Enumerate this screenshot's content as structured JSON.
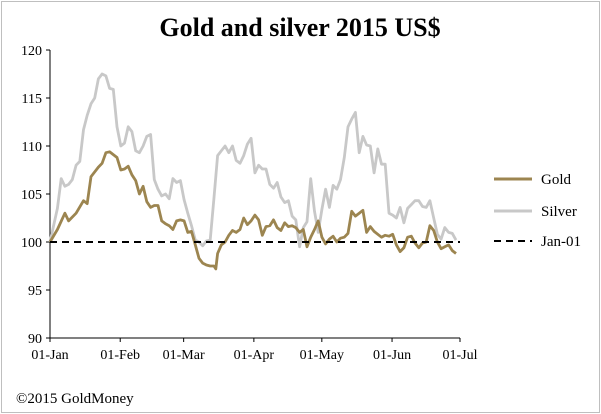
{
  "chart_data": {
    "type": "line",
    "title": "Gold and silver 2015 US$",
    "xlabel": "",
    "ylabel": "",
    "ylim": [
      90,
      120
    ],
    "yticks": [
      90,
      95,
      100,
      105,
      110,
      115,
      120
    ],
    "x_range_days": [
      0,
      181
    ],
    "xticks": [
      {
        "label": "01-Jan",
        "day": 0
      },
      {
        "label": "01-Feb",
        "day": 31
      },
      {
        "label": "01-Mar",
        "day": 59
      },
      {
        "label": "01-Apr",
        "day": 90
      },
      {
        "label": "01-May",
        "day": 120
      },
      {
        "label": "01-Jun",
        "day": 151
      },
      {
        "label": "01-Jul",
        "day": 181
      }
    ],
    "legend_position": "right",
    "series": [
      {
        "name": "Gold",
        "color": "#9c8550",
        "style": "solid",
        "points": [
          [
            0,
            100
          ],
          [
            2,
            101.3
          ],
          [
            4,
            103
          ],
          [
            5,
            102.2
          ],
          [
            7,
            103
          ],
          [
            9,
            104.3
          ],
          [
            10,
            104
          ],
          [
            11,
            106.8
          ],
          [
            13,
            107.8
          ],
          [
            14,
            108.2
          ],
          [
            15,
            109.3
          ],
          [
            16,
            109.4
          ],
          [
            17,
            109.1
          ],
          [
            18,
            108.8
          ],
          [
            19,
            107.5
          ],
          [
            20,
            107.6
          ],
          [
            21,
            107.9
          ],
          [
            22,
            107
          ],
          [
            23,
            106.4
          ],
          [
            24,
            105
          ],
          [
            25,
            105.8
          ],
          [
            26,
            104.2
          ],
          [
            27,
            103.6
          ],
          [
            28,
            103.8
          ],
          [
            29,
            103.8
          ],
          [
            30,
            102.2
          ],
          [
            31,
            101.9
          ],
          [
            32,
            101.7
          ],
          [
            33,
            101.3
          ],
          [
            34,
            102.2
          ],
          [
            35,
            102.3
          ],
          [
            36,
            102.2
          ],
          [
            37,
            101
          ],
          [
            38,
            101.1
          ],
          [
            39,
            99.7
          ],
          [
            40,
            98.3
          ],
          [
            41,
            97.8
          ],
          [
            42,
            97.6
          ],
          [
            43,
            97.5
          ],
          [
            44,
            97.5
          ],
          [
            44.5,
            97.2
          ],
          [
            45,
            98.8
          ],
          [
            46,
            99.7
          ],
          [
            47,
            100
          ],
          [
            48,
            100.7
          ],
          [
            49,
            101.2
          ],
          [
            50,
            101
          ],
          [
            51,
            101.3
          ],
          [
            52,
            102.5
          ],
          [
            53,
            101.8
          ],
          [
            54,
            102.2
          ],
          [
            55,
            102.8
          ],
          [
            56,
            102.3
          ],
          [
            57,
            100.7
          ],
          [
            58,
            101.6
          ],
          [
            59,
            101.7
          ],
          [
            60,
            102.3
          ],
          [
            61,
            101.5
          ],
          [
            62,
            101.2
          ],
          [
            63,
            102
          ],
          [
            64,
            101.6
          ],
          [
            65,
            101.7
          ],
          [
            66,
            101.5
          ],
          [
            67,
            101
          ],
          [
            68,
            101.3
          ],
          [
            69,
            99.5
          ],
          [
            70,
            100.5
          ],
          [
            71,
            101.3
          ],
          [
            72,
            102.2
          ],
          [
            73,
            100.5
          ],
          [
            74,
            99.8
          ],
          [
            75,
            100.3
          ],
          [
            76,
            100.6
          ],
          [
            77,
            100
          ],
          [
            78,
            100.4
          ],
          [
            79,
            100.5
          ],
          [
            80,
            100.9
          ],
          [
            81,
            103.2
          ],
          [
            82,
            102.7
          ],
          [
            83,
            103
          ],
          [
            84,
            103.3
          ],
          [
            85,
            101
          ],
          [
            86,
            101.6
          ],
          [
            87,
            101.1
          ],
          [
            88,
            100.8
          ],
          [
            89,
            100.5
          ],
          [
            90,
            100.7
          ],
          [
            91,
            100.6
          ],
          [
            92,
            100.8
          ],
          [
            93,
            99.7
          ],
          [
            94,
            99
          ],
          [
            95,
            99.4
          ],
          [
            96,
            100.5
          ],
          [
            97,
            100.6
          ],
          [
            98,
            99.9
          ],
          [
            99,
            99.4
          ],
          [
            100,
            99.9
          ],
          [
            101,
            100
          ],
          [
            102,
            101.7
          ],
          [
            103,
            101.2
          ],
          [
            104,
            100
          ],
          [
            105,
            99.3
          ],
          [
            106,
            99.5
          ],
          [
            107,
            99.7
          ],
          [
            108,
            99.1
          ],
          [
            109,
            98.8
          ]
        ],
        "x_scale_note": "x values are approximate day-of-year positions scaled so 109 ≈ 01-Jul"
      },
      {
        "name": "Silver",
        "color": "#c8c8c8",
        "style": "solid",
        "points": [
          [
            0,
            100
          ],
          [
            2,
            103.5
          ],
          [
            3,
            106.6
          ],
          [
            4,
            105.8
          ],
          [
            5,
            106
          ],
          [
            6,
            106.5
          ],
          [
            7,
            108
          ],
          [
            8,
            108.4
          ],
          [
            9,
            111.7
          ],
          [
            10,
            113.2
          ],
          [
            11,
            114.4
          ],
          [
            12,
            115
          ],
          [
            13,
            117
          ],
          [
            14,
            117.5
          ],
          [
            15,
            117.3
          ],
          [
            16,
            116
          ],
          [
            17,
            115.9
          ],
          [
            18,
            112
          ],
          [
            19,
            110
          ],
          [
            20,
            110.3
          ],
          [
            21,
            112
          ],
          [
            22,
            111.5
          ],
          [
            23,
            109.5
          ],
          [
            24,
            109.3
          ],
          [
            25,
            110
          ],
          [
            26,
            111
          ],
          [
            27,
            111.2
          ],
          [
            28,
            106.5
          ],
          [
            29,
            105.5
          ],
          [
            30,
            104.8
          ],
          [
            31,
            105
          ],
          [
            32,
            104.5
          ],
          [
            33,
            106.6
          ],
          [
            34,
            106.2
          ],
          [
            35,
            106.4
          ],
          [
            36,
            104.4
          ],
          [
            37,
            103
          ],
          [
            38,
            101.7
          ],
          [
            39,
            100.2
          ],
          [
            40,
            100
          ],
          [
            41,
            99.6
          ],
          [
            42,
            100.1
          ],
          [
            43,
            100.2
          ],
          [
            44,
            104.5
          ],
          [
            45,
            109
          ],
          [
            46,
            109.5
          ],
          [
            47,
            110
          ],
          [
            48,
            109.3
          ],
          [
            49,
            110
          ],
          [
            50,
            108.5
          ],
          [
            51,
            108.2
          ],
          [
            52,
            109
          ],
          [
            53,
            110.2
          ],
          [
            54,
            110.8
          ],
          [
            55,
            107.2
          ],
          [
            56,
            108
          ],
          [
            57,
            107.6
          ],
          [
            58,
            107.6
          ],
          [
            59,
            106
          ],
          [
            60,
            105.6
          ],
          [
            61,
            106.2
          ],
          [
            62,
            104.7
          ],
          [
            63,
            104.1
          ],
          [
            64,
            104.3
          ],
          [
            65,
            102.7
          ],
          [
            66,
            102.3
          ],
          [
            67,
            99.5
          ],
          [
            68,
            101.5
          ],
          [
            69,
            102.1
          ],
          [
            70,
            106.6
          ],
          [
            71,
            103.2
          ],
          [
            72,
            101
          ],
          [
            73,
            103.4
          ],
          [
            74,
            105.5
          ],
          [
            75,
            103.6
          ],
          [
            76,
            105.9
          ],
          [
            77,
            105.5
          ],
          [
            78,
            106.5
          ],
          [
            79,
            108.8
          ],
          [
            80,
            112
          ],
          [
            81,
            112.8
          ],
          [
            82,
            113.5
          ],
          [
            83,
            109.3
          ],
          [
            84,
            111
          ],
          [
            85,
            110.1
          ],
          [
            86,
            110
          ],
          [
            87,
            107.2
          ],
          [
            88,
            109.7
          ],
          [
            89,
            108.1
          ],
          [
            90,
            108.1
          ],
          [
            91,
            103
          ],
          [
            92,
            102.8
          ],
          [
            93,
            102.5
          ],
          [
            94,
            103.6
          ],
          [
            95,
            102
          ],
          [
            96,
            103.5
          ],
          [
            97,
            103.9
          ],
          [
            98,
            104.3
          ],
          [
            99,
            104.3
          ],
          [
            100,
            103.7
          ],
          [
            101,
            103.6
          ],
          [
            102,
            104.3
          ],
          [
            103,
            102.5
          ],
          [
            104,
            100.8
          ],
          [
            105,
            100.3
          ],
          [
            106,
            101.5
          ],
          [
            107,
            101
          ],
          [
            108,
            100.9
          ],
          [
            109,
            100.2
          ]
        ]
      },
      {
        "name": "Jan-01",
        "color": "#000000",
        "style": "dashed",
        "points": [
          [
            0,
            100
          ],
          [
            109,
            100
          ]
        ]
      }
    ]
  },
  "footer": "©2015 GoldMoney"
}
